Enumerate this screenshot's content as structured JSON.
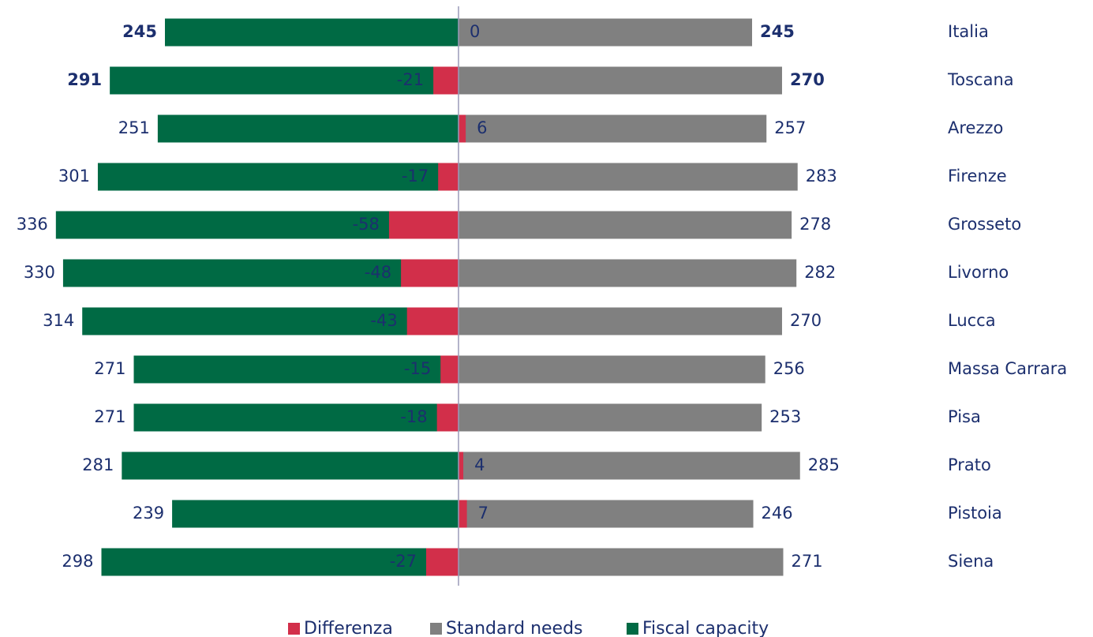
{
  "chart_data": {
    "type": "butterfly-bar",
    "categories": [
      "Italia",
      "Toscana",
      "Arezzo",
      "Firenze",
      "Grosseto",
      "Livorno",
      "Lucca",
      "Massa Carrara",
      "Pisa",
      "Prato",
      "Pistoia",
      "Siena"
    ],
    "series": [
      {
        "name": "Differenza",
        "color": "#d22f4a",
        "direction": "signed",
        "values": [
          0,
          -21,
          6,
          -17,
          -58,
          -48,
          -43,
          -15,
          -18,
          4,
          7,
          -27
        ]
      },
      {
        "name": "Standard needs",
        "color": "#808080",
        "direction": "right",
        "values": [
          245,
          270,
          257,
          283,
          278,
          282,
          270,
          256,
          253,
          285,
          246,
          271
        ]
      },
      {
        "name": "Fiscal capacity",
        "color": "#006a44",
        "direction": "left",
        "values": [
          245,
          291,
          251,
          301,
          336,
          330,
          314,
          271,
          271,
          281,
          239,
          298
        ]
      }
    ],
    "xlim": [
      -380,
      380
    ]
  }
}
